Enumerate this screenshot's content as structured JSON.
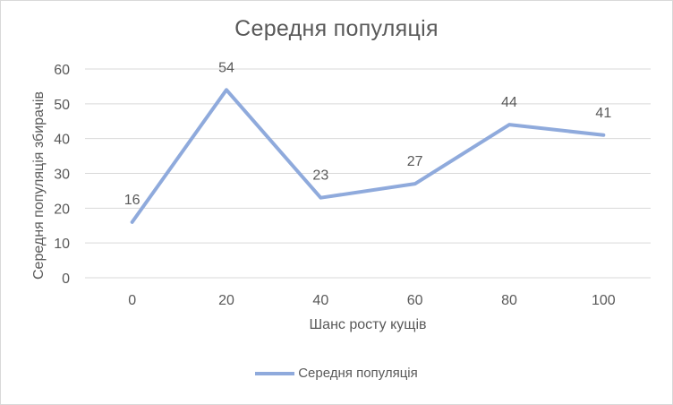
{
  "chart_data": {
    "type": "line",
    "title": "Середня популяція",
    "xlabel": "Шанс росту кущів",
    "ylabel": "Середня популяція збирачів",
    "categories": [
      "0",
      "20",
      "40",
      "60",
      "80",
      "100"
    ],
    "series": [
      {
        "name": "Середня популяція",
        "values": [
          16,
          54,
          23,
          27,
          44,
          41
        ]
      }
    ],
    "ylim": [
      0,
      60
    ],
    "yticks": [
      0,
      10,
      20,
      30,
      40,
      50,
      60
    ],
    "grid": true,
    "legend": "bottom",
    "data_labels": true,
    "colors": {
      "line": "#8faadc",
      "grid": "#d9d9d9",
      "text": "#595959"
    }
  }
}
